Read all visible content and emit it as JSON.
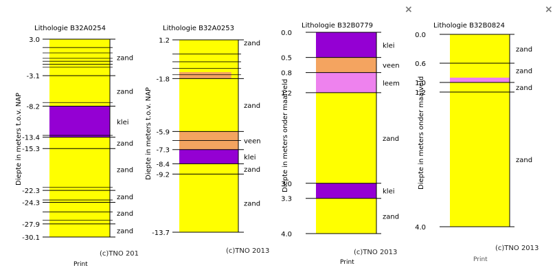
{
  "colors": {
    "zand": "#ffff00",
    "klei": "#9400d3",
    "veen": "#f4a460",
    "leem": "#ee82ee"
  },
  "close_icon": "×",
  "panels": [
    {
      "title": "Lithologie B32A0254",
      "ylabel": "Diepte in meters t.o.v. NAP",
      "copyright": "(c)TNO 201",
      "print": "Print",
      "top": 3.0,
      "bottom": -30.1,
      "layers": [
        {
          "from": 3.0,
          "to": -3.1,
          "type": "zand",
          "label": "zand"
        },
        {
          "from": -3.1,
          "to": -8.2,
          "type": "zand",
          "label": "zand"
        },
        {
          "from": -8.2,
          "to": -13.4,
          "type": "klei",
          "label": "klei"
        },
        {
          "from": -13.4,
          "to": -15.3,
          "type": "zand",
          "label": "zand"
        },
        {
          "from": -15.3,
          "to": -22.3,
          "type": "zand",
          "label": "zand"
        },
        {
          "from": -22.3,
          "to": -24.3,
          "type": "zand",
          "label": "zand"
        },
        {
          "from": -24.3,
          "to": -27.9,
          "type": "zand",
          "label": "zand"
        },
        {
          "from": -27.9,
          "to": -30.1,
          "type": "zand",
          "label": "zand"
        }
      ],
      "depth_labels": [
        "3.0",
        "-3.1",
        "-8.2",
        "-13.4",
        "-15.3",
        "-22.3",
        "-24.3",
        "-27.9",
        "-30.1"
      ],
      "depth_values": [
        3.0,
        -3.1,
        -8.2,
        -13.4,
        -15.3,
        -22.3,
        -24.3,
        -27.9,
        -30.1
      ],
      "extra_lines": [
        1.6,
        0.7,
        -0.2,
        -0.7,
        -1.2,
        -1.7,
        -7.6,
        -13.1,
        -21.8,
        -23.9,
        -25.9,
        -27.3
      ]
    },
    {
      "title": "Lithologie B32A0253",
      "ylabel": "Diepte in meters t.o.v. NAP",
      "copyright": "(c)TNO 2013",
      "print": "",
      "top": 1.2,
      "bottom": -13.7,
      "layers": [
        {
          "from": 1.2,
          "to": -1.8,
          "type": "zand",
          "label": ""
        },
        {
          "from": -1.8,
          "to": -5.9,
          "type": "zand",
          "label": "zand"
        },
        {
          "from": -5.9,
          "to": -7.3,
          "type": "veen",
          "label": "veen"
        },
        {
          "from": -7.3,
          "to": -8.4,
          "type": "klei",
          "label": "klei"
        },
        {
          "from": -8.4,
          "to": -9.2,
          "type": "zand",
          "label": "zand"
        },
        {
          "from": -9.2,
          "to": -13.7,
          "type": "zand",
          "label": "zand"
        }
      ],
      "top_label": "zand",
      "depth_labels": [
        "1.2",
        "-1.8",
        "-5.9",
        "-7.3",
        "-8.4",
        "-9.2",
        "-13.7"
      ],
      "depth_values": [
        1.2,
        -1.8,
        -5.9,
        -7.3,
        -8.4,
        -9.2,
        -13.7
      ],
      "extra_lines": [
        0.1,
        -0.5,
        -1.0,
        -1.5,
        -6.6
      ],
      "patches": [
        {
          "from": -1.3,
          "to": -1.8,
          "type": "veen"
        }
      ]
    },
    {
      "title": "Lithologie B32B0779",
      "ylabel": "Diepte in meters onder maaiveld",
      "copyright": "(c)TNO 2013",
      "print": "Print",
      "top": 0.0,
      "bottom": 4.0,
      "layers": [
        {
          "from": 0.0,
          "to": 0.5,
          "type": "klei",
          "label": "klei"
        },
        {
          "from": 0.5,
          "to": 0.8,
          "type": "veen",
          "label": "veen"
        },
        {
          "from": 0.8,
          "to": 1.2,
          "type": "leem",
          "label": "leem"
        },
        {
          "from": 1.2,
          "to": 3.0,
          "type": "zand",
          "label": "zand"
        },
        {
          "from": 3.0,
          "to": 3.3,
          "type": "klei",
          "label": "klei"
        },
        {
          "from": 3.3,
          "to": 4.0,
          "type": "zand",
          "label": "zand"
        }
      ],
      "depth_labels": [
        "0.0",
        "0.5",
        "0.8",
        "1.2",
        "3.0",
        "3.3",
        "4.0"
      ],
      "depth_values": [
        0.0,
        0.5,
        0.8,
        1.2,
        3.0,
        3.3,
        4.0
      ],
      "extra_lines": []
    },
    {
      "title": "Lithologie B32B0824",
      "ylabel": "Diepte in meters onder maaiveld",
      "copyright": "(c)TNO 2013",
      "print": "Print",
      "top": 0.0,
      "bottom": 4.0,
      "layers": [
        {
          "from": 0.0,
          "to": 0.6,
          "type": "zand",
          "label": "zand"
        },
        {
          "from": 0.6,
          "to": 0.9,
          "type": "zand",
          "label": "zand"
        },
        {
          "from": 0.9,
          "to": 1.0,
          "type": "leem",
          "label": ""
        },
        {
          "from": 1.0,
          "to": 1.2,
          "type": "zand",
          "label": "zand"
        },
        {
          "from": 1.2,
          "to": 4.0,
          "type": "zand",
          "label": "zand"
        }
      ],
      "depth_labels": [
        "0.0",
        "0.6",
        "1.0",
        "1.2",
        "4.0"
      ],
      "depth_values": [
        0.0,
        0.6,
        1.0,
        1.2,
        4.0
      ],
      "extra_lines": []
    }
  ]
}
